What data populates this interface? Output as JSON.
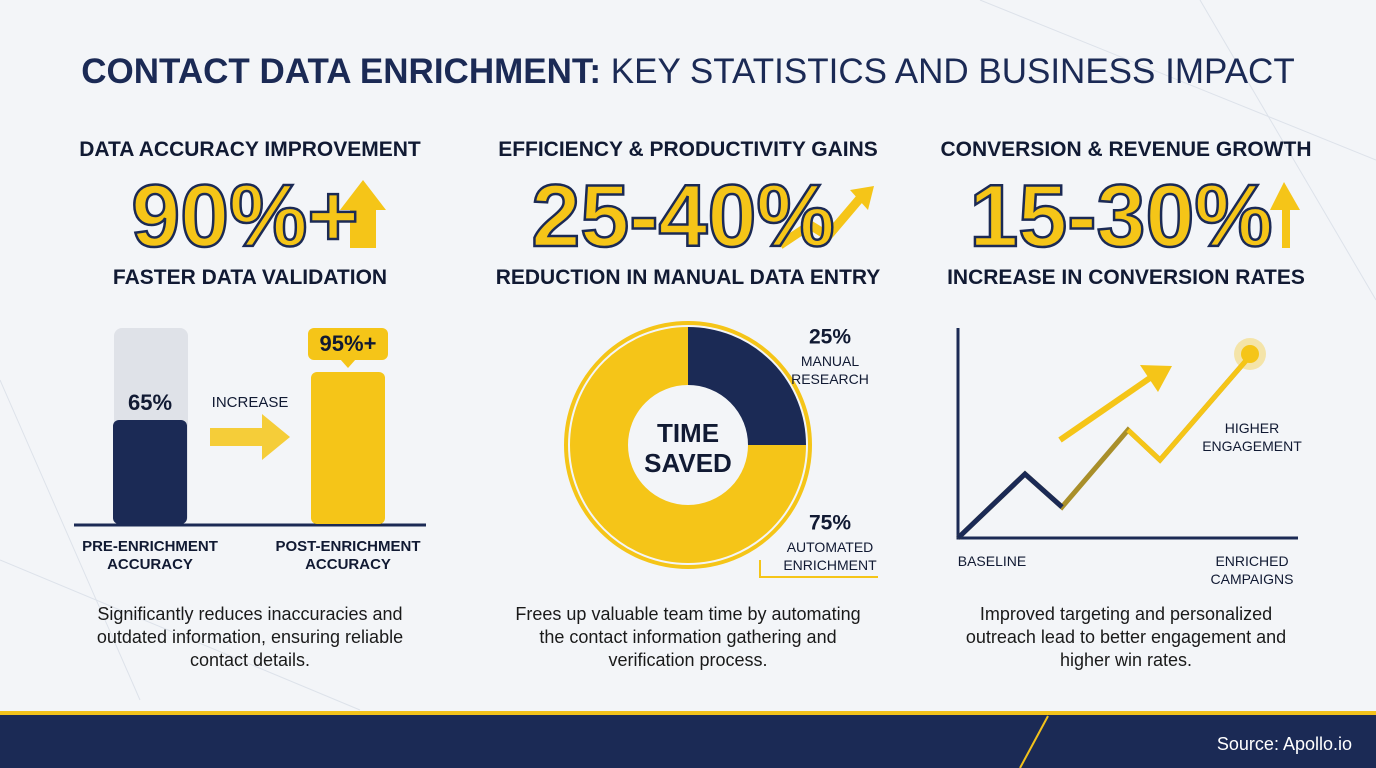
{
  "title_bold": "CONTACT DATA ENRICHMENT:",
  "title_rest": "KEY STATISTICS AND BUSINESS IMPACT",
  "panels": [
    {
      "heading": "DATA ACCURACY IMPROVEMENT",
      "big": "90%+",
      "subheading": "FASTER DATA VALIDATION",
      "bars": [
        {
          "value": 65,
          "label": "65%",
          "name": "PRE-ENRICHMENT ACCURACY"
        },
        {
          "value": 95,
          "label": "95%+",
          "name": "POST-ENRICHMENT ACCURACY"
        }
      ],
      "arrow_label": "INCREASE",
      "description": "Significantly reduces inaccuracies and outdated information, ensuring reliable contact details."
    },
    {
      "heading": "EFFICIENCY & PRODUCTIVITY GAINS",
      "big": "25-40%",
      "subheading": "REDUCTION IN MANUAL DATA ENTRY",
      "center": "TIME SAVED",
      "slices": [
        {
          "value": 25,
          "label": "25%",
          "name": "MANUAL RESEARCH"
        },
        {
          "value": 75,
          "label": "75%",
          "name": "AUTOMATED ENRICHMENT"
        }
      ],
      "description": "Frees up valuable team time by automating the contact information gathering and verification process."
    },
    {
      "heading": "CONVERSION & REVENUE GROWTH",
      "big": "15-30%",
      "subheading": "INCREASE IN CONVERSION RATES",
      "annotation": "HIGHER ENGAGEMENT",
      "x_start": "BASELINE",
      "x_end": "ENRICHED CAMPAIGNS",
      "description": "Improved targeting and personalized outreach lead to better engagement and higher win rates."
    }
  ],
  "source": "Source: Apollo.io"
}
